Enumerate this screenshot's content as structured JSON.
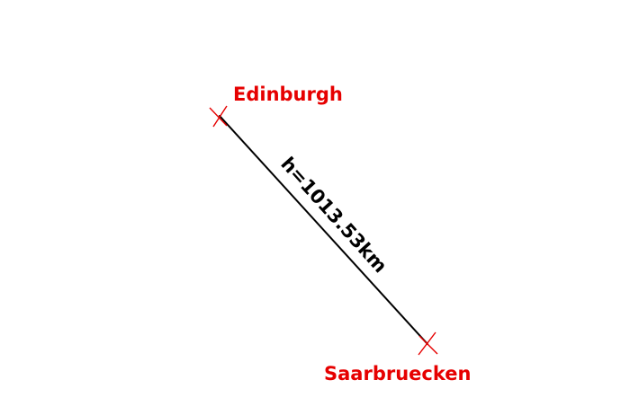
{
  "colors": {
    "background": "#ffffff",
    "city": "#e60000",
    "line": "#000000",
    "label": "#000000"
  },
  "cities": {
    "edinburgh": {
      "name": "Edinburgh"
    },
    "saarbruecken": {
      "name": "Saarbruecken"
    }
  },
  "route": {
    "label": "h=1013.53km"
  }
}
